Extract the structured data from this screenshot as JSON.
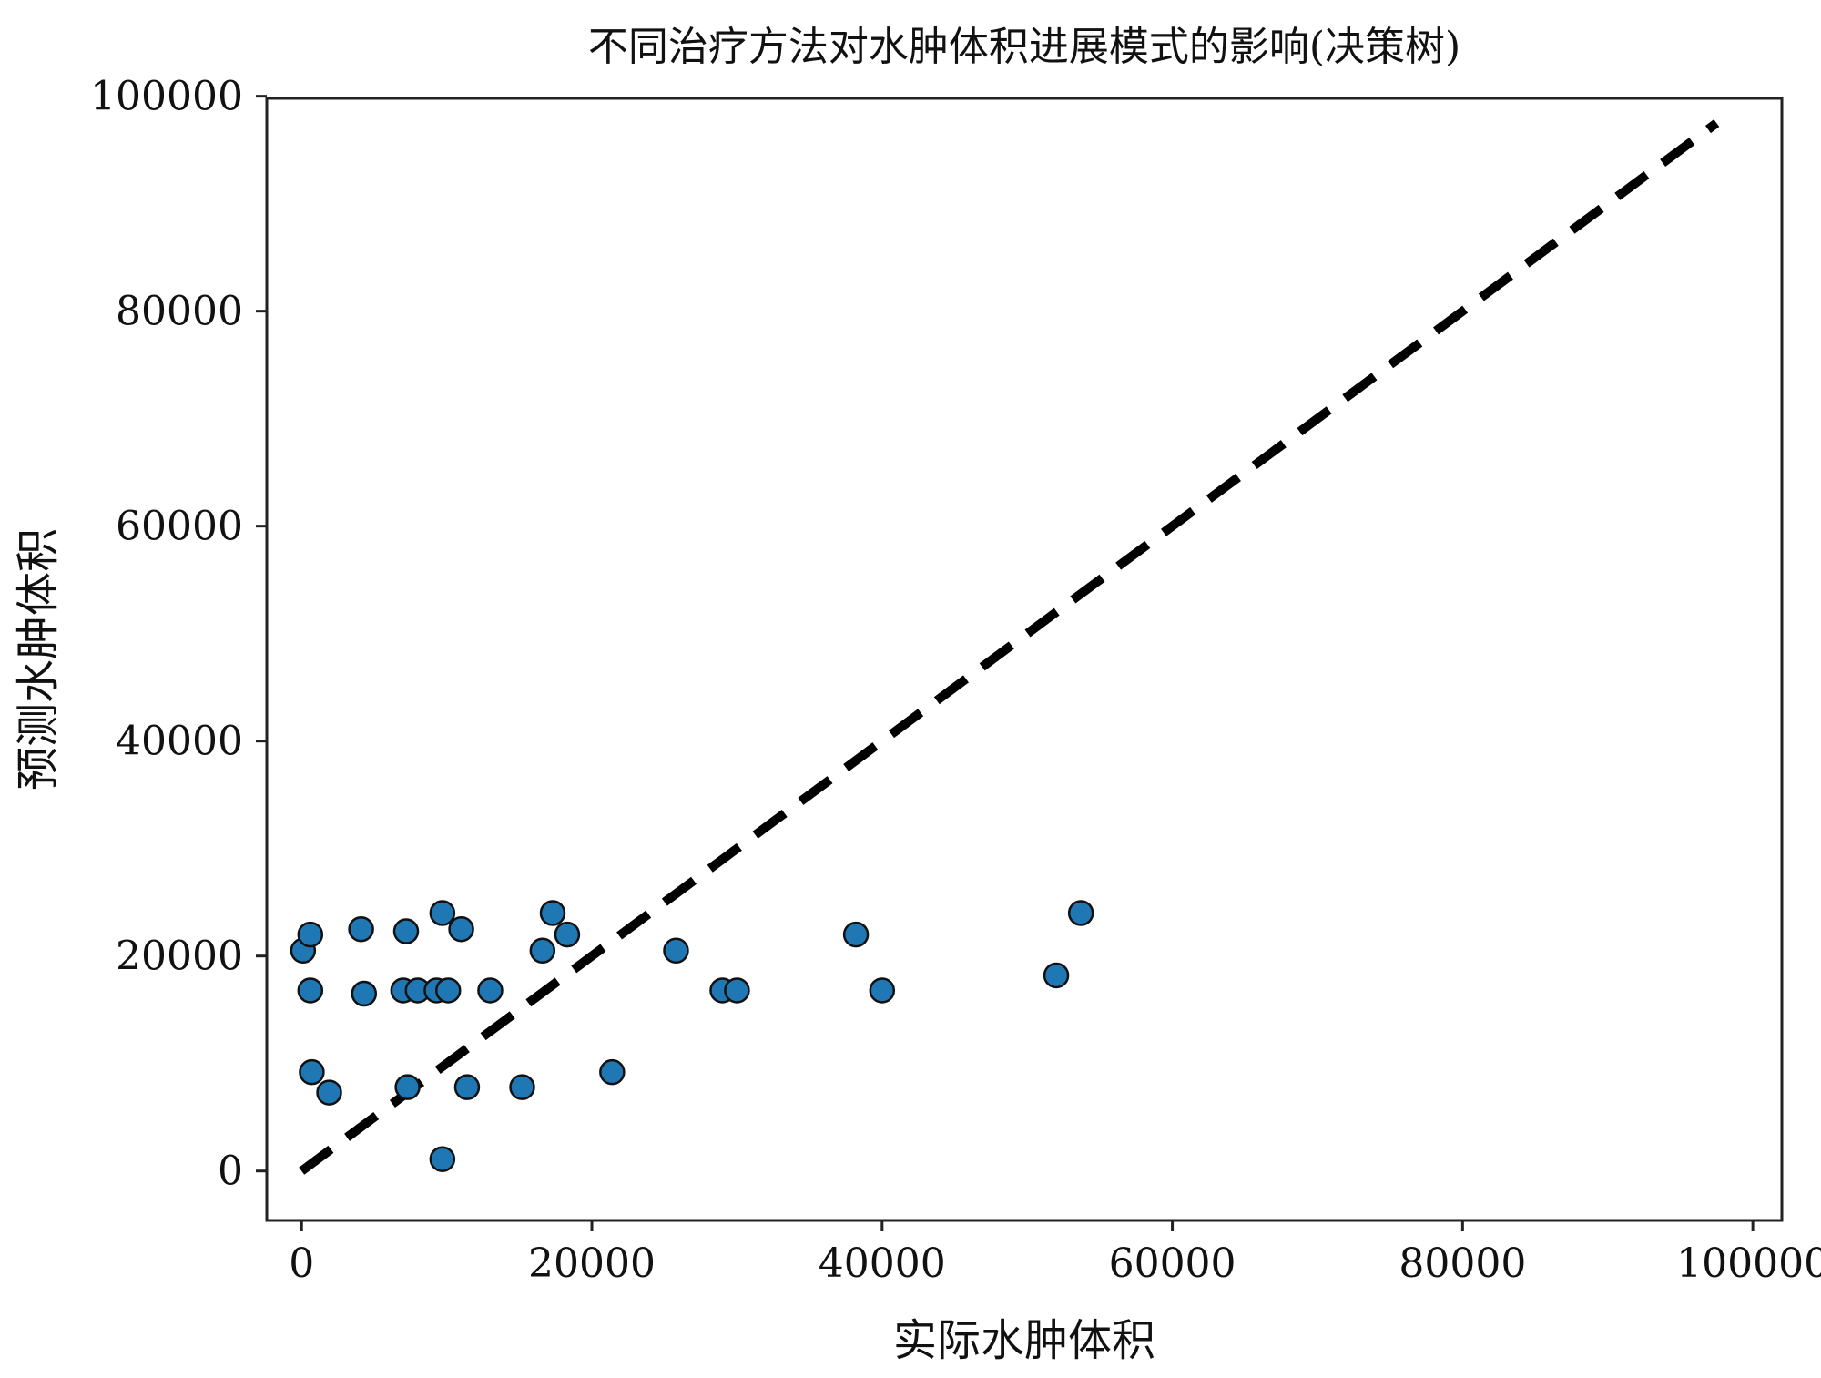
{
  "chart_data": {
    "type": "scatter",
    "title": "不同治疗方法对水肿体积进展模式的影响(决策树)",
    "xlabel": "实际水肿体积",
    "ylabel": "预测水肿体积",
    "xlim": [
      -2400,
      102000
    ],
    "ylim": [
      -4600,
      99800
    ],
    "xticks": [
      0,
      20000,
      40000,
      60000,
      80000,
      100000
    ],
    "yticks": [
      0,
      20000,
      40000,
      60000,
      80000,
      100000
    ],
    "grid": false,
    "legend": "none",
    "reference_line": {
      "style": "dashed",
      "color": "#000000",
      "from": [
        0,
        0
      ],
      "to": [
        97500,
        97500
      ]
    },
    "colors": {
      "point_fill": "#1f77b4",
      "point_edge": "#111111",
      "axes": "#222222",
      "background": "#ffffff"
    },
    "series": [
      {
        "points": [
          [
            100,
            20500
          ],
          [
            600,
            22000
          ],
          [
            600,
            16800
          ],
          [
            700,
            9200
          ],
          [
            1900,
            7300
          ],
          [
            4100,
            22500
          ],
          [
            4300,
            16500
          ],
          [
            7200,
            22300
          ],
          [
            7000,
            16800
          ],
          [
            7300,
            7800
          ],
          [
            8000,
            16800
          ],
          [
            9300,
            16800
          ],
          [
            9700,
            24000
          ],
          [
            10100,
            16800
          ],
          [
            11000,
            22500
          ],
          [
            11400,
            7800
          ],
          [
            13000,
            16800
          ],
          [
            9700,
            1100
          ],
          [
            15200,
            7800
          ],
          [
            16600,
            20500
          ],
          [
            17300,
            24000
          ],
          [
            18300,
            22000
          ],
          [
            21400,
            9200
          ],
          [
            25800,
            20500
          ],
          [
            29000,
            16800
          ],
          [
            30000,
            16800
          ],
          [
            38200,
            22000
          ],
          [
            40000,
            16800
          ],
          [
            52000,
            18200
          ],
          [
            53700,
            24000
          ]
        ]
      }
    ]
  }
}
